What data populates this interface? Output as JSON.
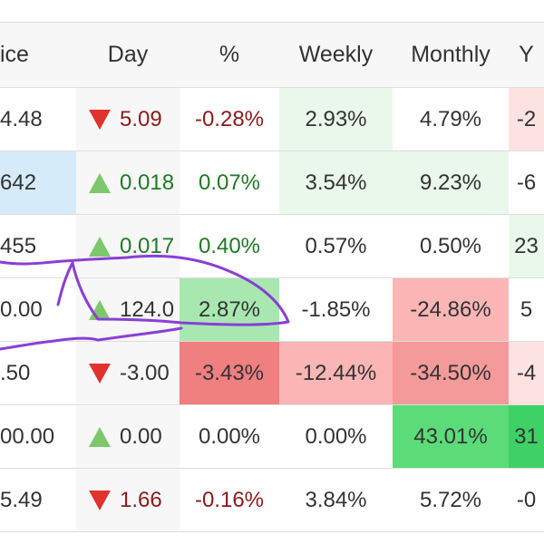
{
  "headers": {
    "price": "ice",
    "day": "Day",
    "pct": "%",
    "weekly": "Weekly",
    "monthly": "Monthly",
    "next": "Y"
  },
  "rows": [
    {
      "price": "4.48",
      "day": "5.09",
      "day_dir": "down",
      "pct": "-0.28%",
      "weekly": "2.93%",
      "monthly": "4.79%",
      "next": "-2"
    },
    {
      "price": "642",
      "day": "0.018",
      "day_dir": "up",
      "pct": "0.07%",
      "weekly": "3.54%",
      "monthly": "9.23%",
      "next": "-6"
    },
    {
      "price": "455",
      "day": "0.017",
      "day_dir": "up",
      "pct": "0.40%",
      "weekly": "0.57%",
      "monthly": "0.50%",
      "next": "23"
    },
    {
      "price": "0.00",
      "day": "124.0",
      "day_dir": "up",
      "pct": "2.87%",
      "weekly": "-1.85%",
      "monthly": "-24.86%",
      "next": "5"
    },
    {
      "price": ".50",
      "day": "-3.00",
      "day_dir": "down",
      "pct": "-3.43%",
      "weekly": "-12.44%",
      "monthly": "-34.50%",
      "next": "-4"
    },
    {
      "price": "00.00",
      "day": "0.00",
      "day_dir": "up",
      "pct": "0.00%",
      "weekly": "0.00%",
      "monthly": "43.01%",
      "next": "31"
    },
    {
      "price": "5.49",
      "day": "1.66",
      "day_dir": "down",
      "pct": "-0.16%",
      "weekly": "3.84%",
      "monthly": "5.72%",
      "next": "-0"
    }
  ],
  "colors": {
    "up_arrow": "#7cc86b",
    "down_arrow": "#e2322c",
    "annotation_stroke": "#8a3fd6"
  }
}
